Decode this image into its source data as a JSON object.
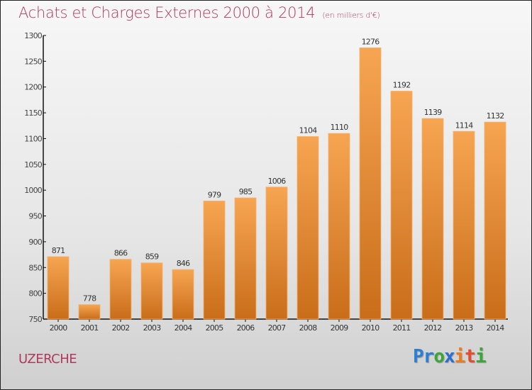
{
  "header": {
    "title": "Achats et Charges Externes 2000 à 2014",
    "subtitle": "(en milliers d'€)"
  },
  "footer": {
    "city": "UZERCHE",
    "logo_letters": [
      {
        "ch": "P",
        "color": "#2a7fd4"
      },
      {
        "ch": "r",
        "color": "#2a7fd4"
      },
      {
        "ch": "o",
        "color": "#3aa63a"
      },
      {
        "ch": "x",
        "color": "#2a6fd0"
      },
      {
        "ch": "i",
        "color": "#f07a1a"
      },
      {
        "ch": "t",
        "color": "#e84a2a"
      },
      {
        "ch": "i",
        "color": "#3aa63a"
      }
    ]
  },
  "colors": {
    "bar_top": "#f7a552",
    "bar_bottom": "#c96d1a",
    "title": "#b03a5e"
  },
  "chart_data": {
    "type": "bar",
    "title": "Achats et Charges Externes 2000 à 2014",
    "subtitle": "(en milliers d'€)",
    "xlabel": "",
    "ylabel": "",
    "categories": [
      "2000",
      "2001",
      "2002",
      "2003",
      "2004",
      "2005",
      "2006",
      "2007",
      "2008",
      "2009",
      "2010",
      "2011",
      "2012",
      "2013",
      "2014"
    ],
    "values": [
      871,
      778,
      866,
      859,
      846,
      979,
      985,
      1006,
      1104,
      1110,
      1276,
      1192,
      1139,
      1114,
      1132
    ],
    "ylim": [
      750,
      1300
    ],
    "yticks": [
      750,
      800,
      850,
      900,
      950,
      1000,
      1050,
      1100,
      1150,
      1200,
      1250,
      1300
    ],
    "grid": false,
    "legend": "none"
  }
}
